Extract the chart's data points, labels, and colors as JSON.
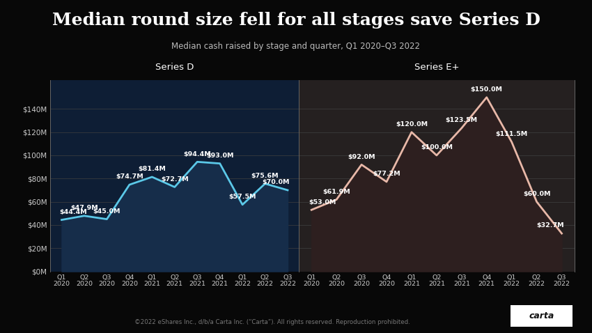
{
  "title": "Median round size fell for all stages save Series D",
  "subtitle": "Median cash raised by stage and quarter, Q1–2020–Q3 2022",
  "subtitle_plain": "Median cash raised by stage and quarter, Q1 2020–Q3 2022",
  "footer": "©2022 eShares Inc., d/b/a Carta Inc. (“Carta”). All rights reserved. Reproduction prohibited.",
  "background_color": "#080808",
  "plot_bg_left": "#0e1e35",
  "plot_bg_right": "#252020",
  "quarters": [
    "Q1 2020",
    "Q2 2020",
    "Q3 2020",
    "Q4 2020",
    "Q1 2021",
    "Q2 2021",
    "Q3 2021",
    "Q4 2021",
    "Q1 2022",
    "Q2 2022",
    "Q3 2022"
  ],
  "series_d": [
    44.4,
    47.9,
    45.0,
    74.7,
    81.4,
    72.7,
    94.4,
    93.0,
    57.5,
    75.6,
    70.0
  ],
  "series_e": [
    53.0,
    61.9,
    92.0,
    77.2,
    120.0,
    100.0,
    123.5,
    150.0,
    111.5,
    60.0,
    32.7
  ],
  "series_d_color": "#5bc8e8",
  "series_e_color": "#e8b8a8",
  "series_d_fill": "#162d4a",
  "series_e_fill": "#2d1f1f",
  "title_color": "#ffffff",
  "subtitle_color": "#bbbbbb",
  "label_color": "#ffffff",
  "tick_color": "#cccccc",
  "grid_color": "#404040",
  "separator_color": "#666666",
  "ylim": [
    0,
    165
  ],
  "yticks": [
    0,
    20,
    40,
    60,
    80,
    100,
    120,
    140
  ],
  "ytick_labels": [
    "$0M",
    "$20M",
    "$40M",
    "$60M",
    "$80M",
    "$100M",
    "$120M",
    "$140M"
  ],
  "carta_bg": "#ffffff",
  "carta_color": "#000000"
}
